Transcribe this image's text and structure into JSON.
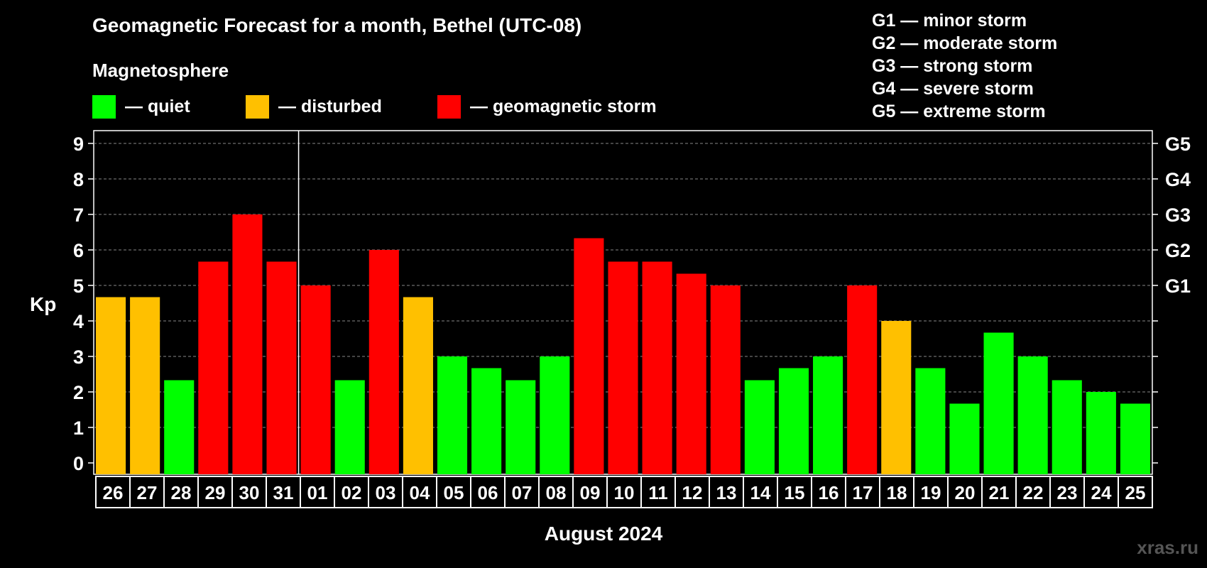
{
  "chart_data": {
    "type": "bar",
    "title": "Geomagnetic Forecast for a month, Bethel (UTC-08)",
    "subtitle": "Magnetosphere",
    "ylabel": "Kp",
    "xlabel": "August 2024",
    "ylim": [
      0,
      9
    ],
    "grid": true,
    "categories": [
      "26",
      "27",
      "28",
      "29",
      "30",
      "31",
      "01",
      "02",
      "03",
      "04",
      "05",
      "06",
      "07",
      "08",
      "09",
      "10",
      "11",
      "12",
      "13",
      "14",
      "15",
      "16",
      "17",
      "18",
      "19",
      "20",
      "21",
      "22",
      "23",
      "24",
      "25"
    ],
    "values": [
      4.67,
      4.67,
      2.33,
      5.67,
      7.0,
      5.67,
      5.0,
      2.33,
      6.0,
      4.67,
      3.0,
      2.67,
      2.33,
      3.0,
      6.33,
      5.67,
      5.67,
      5.33,
      5.0,
      2.33,
      2.67,
      3.0,
      5.0,
      4.0,
      2.67,
      1.67,
      3.67,
      3.0,
      2.33,
      2.0,
      1.67
    ],
    "status": [
      "disturbed",
      "disturbed",
      "quiet",
      "storm",
      "storm",
      "storm",
      "storm",
      "quiet",
      "storm",
      "disturbed",
      "quiet",
      "quiet",
      "quiet",
      "quiet",
      "storm",
      "storm",
      "storm",
      "storm",
      "storm",
      "quiet",
      "quiet",
      "quiet",
      "storm",
      "disturbed",
      "quiet",
      "quiet",
      "quiet",
      "quiet",
      "quiet",
      "quiet",
      "quiet"
    ],
    "colors": {
      "quiet": "#00ff00",
      "disturbed": "#ffc000",
      "storm": "#ff0000"
    },
    "yticks": [
      "0",
      "1",
      "2",
      "3",
      "4",
      "5",
      "6",
      "7",
      "8",
      "9"
    ],
    "right_axis": [
      {
        "kp": 5,
        "label": "G1"
      },
      {
        "kp": 6,
        "label": "G2"
      },
      {
        "kp": 7,
        "label": "G3"
      },
      {
        "kp": 8,
        "label": "G4"
      },
      {
        "kp": 9,
        "label": "G5"
      }
    ],
    "month_separator_after_index": 5
  },
  "legend": [
    {
      "key": "quiet",
      "label": "— quiet"
    },
    {
      "key": "disturbed",
      "label": "— disturbed"
    },
    {
      "key": "storm",
      "label": "— geomagnetic storm"
    }
  ],
  "scale": [
    "G1 — minor storm",
    "G2 — moderate storm",
    "G3 — strong storm",
    "G4 — severe storm",
    "G5 — extreme storm"
  ],
  "watermark": "xras.ru"
}
